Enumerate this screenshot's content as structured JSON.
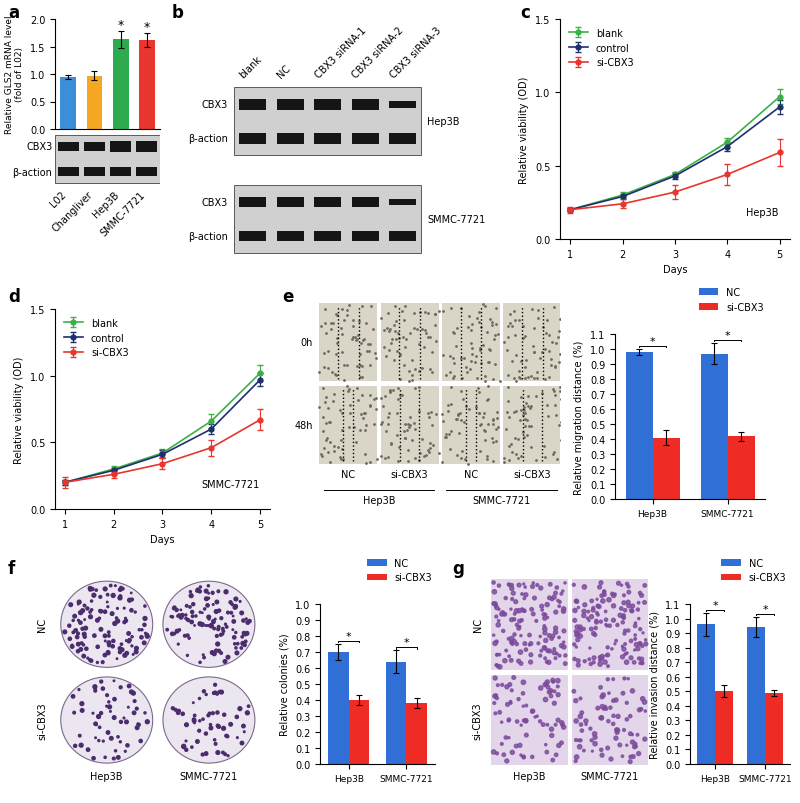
{
  "panel_labels": [
    "a",
    "b",
    "c",
    "d",
    "e",
    "f",
    "g"
  ],
  "chart_data": [
    {
      "type": "bar",
      "ylabel": "Relative GLS2 mRNA level\n(fold of L02)",
      "categories": [
        "L02",
        "Changliver",
        "Hep3B",
        "SMMC-7721"
      ],
      "values": [
        0.95,
        0.97,
        1.63,
        1.62
      ],
      "errors": [
        0.04,
        0.08,
        0.15,
        0.13
      ],
      "colors": [
        "#3b8ed8",
        "#f5a623",
        "#2eaa4f",
        "#e8352e"
      ],
      "ylim": [
        0,
        2.0
      ],
      "yticks": [
        {
          "value": 0,
          "label": "0.0"
        },
        {
          "value": 0.5,
          "label": "0.5"
        },
        {
          "value": 1.0,
          "label": "1.0"
        },
        {
          "value": 1.5,
          "label": "1.5"
        },
        {
          "value": 2.0,
          "label": "2.0"
        }
      ],
      "significance": [
        {
          "category": "Hep3B",
          "text": "*"
        },
        {
          "category": "SMMC-7721",
          "text": "*"
        }
      ]
    },
    {
      "type": "line",
      "xlabel": "Days",
      "ylabel": "Relative viability (OD)",
      "annotations": [
        "Hep3B"
      ],
      "x": [
        1,
        2,
        3,
        4,
        5
      ],
      "xlim": [
        0.8,
        5.2
      ],
      "xticks": [
        1,
        2,
        3,
        4,
        5
      ],
      "ylim": [
        0,
        1.5
      ],
      "yticks": [
        {
          "value": 0,
          "label": "0.0"
        },
        {
          "value": 0.5,
          "label": "0.5"
        },
        {
          "value": 1.0,
          "label": "1.0"
        },
        {
          "value": 1.5,
          "label": "1.5"
        }
      ],
      "legend": "upper left",
      "series": [
        {
          "name": "blank",
          "color": "#3cb043",
          "marker": "o",
          "values": [
            0.2,
            0.3,
            0.44,
            0.66,
            0.97
          ],
          "errors": [
            0.01,
            0.02,
            0.02,
            0.03,
            0.05
          ]
        },
        {
          "name": "control",
          "color": "#1f2f6e",
          "marker": "o",
          "values": [
            0.2,
            0.29,
            0.43,
            0.63,
            0.9
          ],
          "errors": [
            0.01,
            0.02,
            0.02,
            0.03,
            0.05
          ]
        },
        {
          "name": "si-CBX3",
          "color": "#e8352e",
          "marker": "o",
          "values": [
            0.2,
            0.24,
            0.32,
            0.44,
            0.59
          ],
          "errors": [
            0.02,
            0.03,
            0.05,
            0.07,
            0.09
          ]
        }
      ]
    },
    {
      "type": "line",
      "xlabel": "Days",
      "ylabel": "Relative viability (OD)",
      "annotations": [
        "SMMC-7721"
      ],
      "x": [
        1,
        2,
        3,
        4,
        5
      ],
      "xlim": [
        0.8,
        5.2
      ],
      "xticks": [
        1,
        2,
        3,
        4,
        5
      ],
      "ylim": [
        0,
        1.5
      ],
      "yticks": [
        {
          "value": 0,
          "label": "0.0"
        },
        {
          "value": 0.5,
          "label": "0.5"
        },
        {
          "value": 1.0,
          "label": "1.0"
        },
        {
          "value": 1.5,
          "label": "1.5"
        }
      ],
      "legend": "upper left",
      "series": [
        {
          "name": "blank",
          "color": "#3cb043",
          "marker": "o",
          "values": [
            0.2,
            0.3,
            0.42,
            0.66,
            1.02
          ],
          "errors": [
            0.02,
            0.02,
            0.03,
            0.05,
            0.06
          ]
        },
        {
          "name": "control",
          "color": "#1f2f6e",
          "marker": "o",
          "values": [
            0.2,
            0.29,
            0.41,
            0.6,
            0.97
          ],
          "errors": [
            0.02,
            0.02,
            0.03,
            0.04,
            0.05
          ]
        },
        {
          "name": "si-CBX3",
          "color": "#e8352e",
          "marker": "o",
          "values": [
            0.2,
            0.26,
            0.34,
            0.46,
            0.67
          ],
          "errors": [
            0.04,
            0.03,
            0.04,
            0.06,
            0.08
          ]
        }
      ]
    },
    {
      "type": "bar",
      "ylabel": "Relative migration distance (%)",
      "categories": [
        "Hep3B",
        "SMMC-7721"
      ],
      "ylim": [
        0,
        1.1
      ],
      "yticks": [
        {
          "value": 0,
          "label": "0.0"
        },
        {
          "value": 0.1,
          "label": "0.1"
        },
        {
          "value": 0.2,
          "label": "0.2"
        },
        {
          "value": 0.3,
          "label": "0.3"
        },
        {
          "value": 0.4,
          "label": "0.4"
        },
        {
          "value": 0.5,
          "label": "0.5"
        },
        {
          "value": 0.6,
          "label": "0.6"
        },
        {
          "value": 0.7,
          "label": "0.7"
        },
        {
          "value": 0.8,
          "label": "0.8"
        },
        {
          "value": 0.9,
          "label": "0.9"
        },
        {
          "value": 1.0,
          "label": "1.0"
        },
        {
          "value": 1.1,
          "label": "1.1"
        }
      ],
      "legend": "upper right",
      "series": [
        {
          "name": "NC",
          "color": "#2f6fd6",
          "values": [
            0.98,
            0.97
          ],
          "errors": [
            0.02,
            0.07
          ]
        },
        {
          "name": "si-CBX3",
          "color": "#ee2b24",
          "values": [
            0.41,
            0.42
          ],
          "errors": [
            0.05,
            0.03
          ]
        }
      ],
      "significance": [
        {
          "category": "Hep3B",
          "text": "*"
        },
        {
          "category": "SMMC-7721",
          "text": "*"
        }
      ]
    },
    {
      "type": "bar",
      "ylabel": "Relative colonies (%)",
      "categories": [
        "Hep3B",
        "SMMC-7721"
      ],
      "ylim": [
        0,
        1.0
      ],
      "yticks": [
        {
          "value": 0,
          "label": "0.0"
        },
        {
          "value": 0.1,
          "label": "0.1"
        },
        {
          "value": 0.2,
          "label": "0.2"
        },
        {
          "value": 0.3,
          "label": "0.3"
        },
        {
          "value": 0.4,
          "label": "0.4"
        },
        {
          "value": 0.5,
          "label": "0.5"
        },
        {
          "value": 0.6,
          "label": "0.6"
        },
        {
          "value": 0.7,
          "label": "0.7"
        },
        {
          "value": 0.8,
          "label": "0.8"
        },
        {
          "value": 0.9,
          "label": "0.9"
        },
        {
          "value": 1.0,
          "label": "1.0"
        }
      ],
      "legend": "upper right",
      "series": [
        {
          "name": "NC",
          "color": "#2f6fd6",
          "values": [
            0.7,
            0.64
          ],
          "errors": [
            0.05,
            0.07
          ]
        },
        {
          "name": "si-CBX3",
          "color": "#ee2b24",
          "values": [
            0.4,
            0.38
          ],
          "errors": [
            0.03,
            0.03
          ]
        }
      ],
      "significance": [
        {
          "category": "Hep3B",
          "text": "*"
        },
        {
          "category": "SMMC-7721",
          "text": "*"
        }
      ]
    },
    {
      "type": "bar",
      "ylabel": "Relative invasion distance (%)",
      "categories": [
        "Hep3B",
        "SMMC-7721"
      ],
      "ylim": [
        0,
        1.1
      ],
      "yticks": [
        {
          "value": 0,
          "label": "0.0"
        },
        {
          "value": 0.1,
          "label": "0.1"
        },
        {
          "value": 0.2,
          "label": "0.2"
        },
        {
          "value": 0.3,
          "label": "0.3"
        },
        {
          "value": 0.4,
          "label": "0.4"
        },
        {
          "value": 0.5,
          "label": "0.5"
        },
        {
          "value": 0.6,
          "label": "0.6"
        },
        {
          "value": 0.7,
          "label": "0.7"
        },
        {
          "value": 0.8,
          "label": "0.8"
        },
        {
          "value": 0.9,
          "label": "0.9"
        },
        {
          "value": 1.0,
          "label": "1.0"
        },
        {
          "value": 1.1,
          "label": "1.1"
        }
      ],
      "legend": "upper right",
      "series": [
        {
          "name": "NC",
          "color": "#2f6fd6",
          "values": [
            0.96,
            0.94
          ],
          "errors": [
            0.08,
            0.07
          ]
        },
        {
          "name": "si-CBX3",
          "color": "#ee2b24",
          "values": [
            0.5,
            0.49
          ],
          "errors": [
            0.04,
            0.02
          ]
        }
      ],
      "significance": [
        {
          "category": "Hep3B",
          "text": "*"
        },
        {
          "category": "SMMC-7721",
          "text": "*"
        }
      ]
    }
  ],
  "blot_a": {
    "rows": [
      "CBX3",
      "β-action"
    ]
  },
  "blot_b": {
    "columns": [
      "blank",
      "NC",
      "CBX3 siRNA-1",
      "CBX3 siRNA-2",
      "CBX3 siRNA-3"
    ],
    "groups": [
      {
        "name": "Hep3B",
        "rows": [
          "CBX3",
          "β-action"
        ]
      },
      {
        "name": "SMMC-7721",
        "rows": [
          "CBX3",
          "β-action"
        ]
      }
    ]
  },
  "images_e": {
    "row_labels": [
      "0h",
      "48h"
    ],
    "column_labels": [
      "NC",
      "si-CBX3",
      "NC",
      "si-CBX3"
    ],
    "group_labels": [
      "Hep3B",
      "SMMC-7721"
    ]
  },
  "images_f": {
    "row_labels": [
      "NC",
      "si-CBX3"
    ],
    "column_labels": [
      "Hep3B",
      "SMMC-7721"
    ]
  },
  "images_g": {
    "row_labels": [
      "NC",
      "si-CBX3"
    ],
    "column_labels": [
      "Hep3B",
      "SMMC-7721"
    ]
  }
}
